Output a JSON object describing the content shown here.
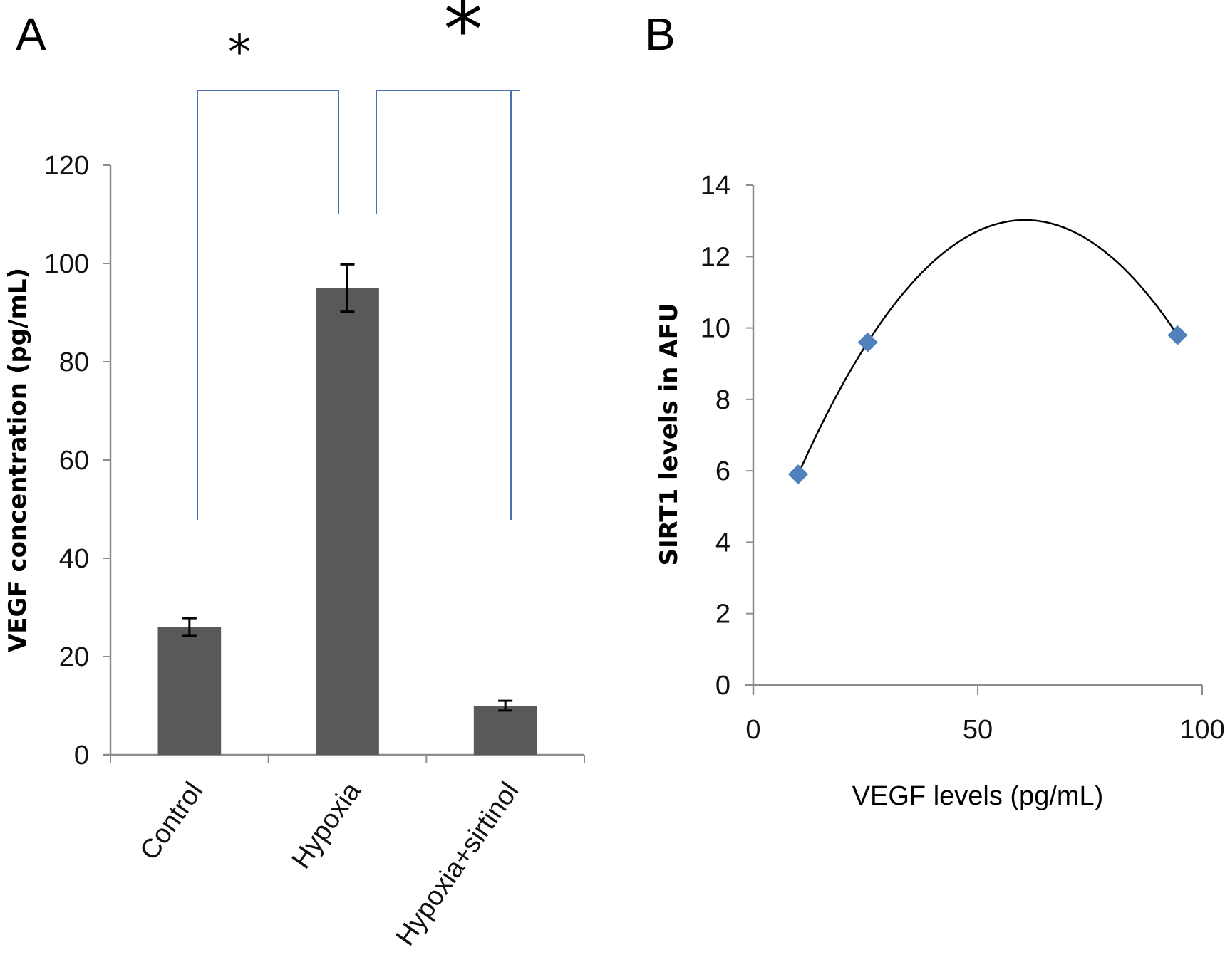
{
  "chart_data": [
    {
      "panel": "A",
      "type": "bar",
      "title": "",
      "xlabel": "",
      "ylabel": "VEGF concentration  (pg/mL)",
      "categories": [
        "Control",
        "Hypoxia",
        "Hypoxia+sirtinol"
      ],
      "values": [
        26,
        95,
        10
      ],
      "errors": [
        1.8,
        4.8,
        1.0
      ],
      "ylim": [
        0,
        120
      ],
      "yticks": [
        0,
        20,
        40,
        60,
        80,
        100,
        120
      ],
      "bar_color": "#595959",
      "grid": false,
      "significance": [
        {
          "from": "Control",
          "to": "Hypoxia",
          "label": "*"
        },
        {
          "from": "Hypoxia",
          "to": "Hypoxia+sirtinol",
          "label": "*"
        }
      ],
      "bracket_color": "#4a72b0"
    },
    {
      "panel": "B",
      "type": "scatter",
      "title": "",
      "xlabel": "VEGF levels (pg/mL)",
      "ylabel": "SIRT1 levels in AFU",
      "points": [
        {
          "x": 10,
          "y": 5.9
        },
        {
          "x": 25.5,
          "y": 9.6
        },
        {
          "x": 94.5,
          "y": 9.8
        }
      ],
      "trendline": "polynomial (order 2)",
      "trend_peak": {
        "x": 60,
        "y": 12.9
      },
      "xlim": [
        0,
        100
      ],
      "ylim": [
        0,
        14
      ],
      "xticks": [
        0,
        50,
        100
      ],
      "yticks": [
        0,
        2,
        4,
        6,
        8,
        10,
        12,
        14
      ],
      "marker_color": "#4f81bd",
      "line_color": "#000000",
      "grid": false
    }
  ],
  "panels": {
    "a_label": "A",
    "b_label": "B"
  }
}
